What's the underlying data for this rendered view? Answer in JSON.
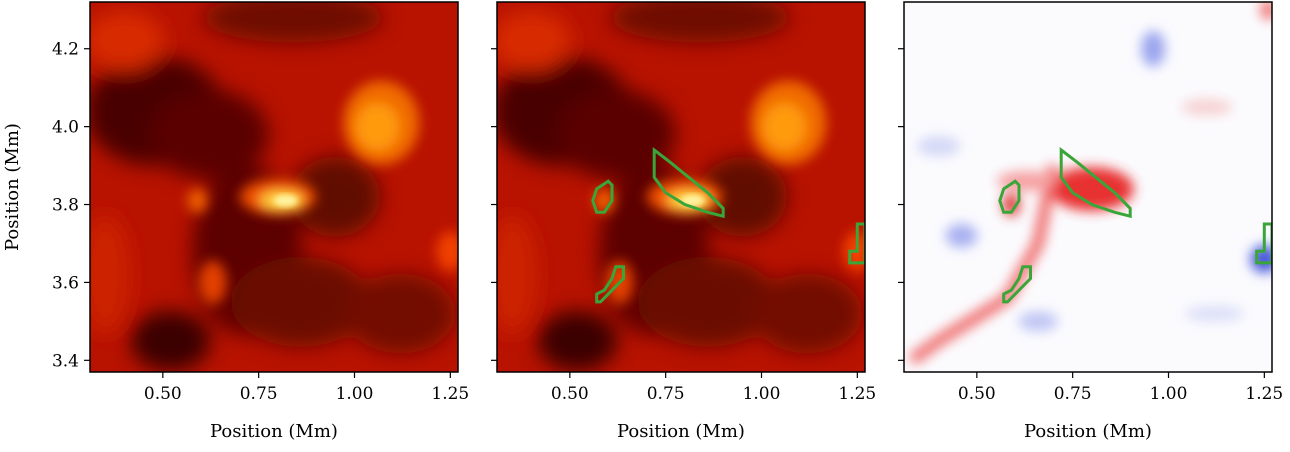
{
  "chart_data": {
    "type": "heatmap",
    "title": "",
    "xlabel": "Position (Mm)",
    "ylabel": "Position (Mm)",
    "xlim": [
      0.31,
      1.27
    ],
    "ylim": [
      3.37,
      4.32
    ],
    "x_ticks": [
      0.5,
      0.75,
      1.0,
      1.25
    ],
    "x_tick_labels": [
      "0.50",
      "0.75",
      "1.00",
      "1.25"
    ],
    "y_ticks": [
      3.4,
      3.6,
      3.8,
      4.0,
      4.2
    ],
    "y_tick_labels": [
      "3.4",
      "3.6",
      "3.8",
      "4.0",
      "4.2"
    ],
    "panels": [
      {
        "name": "intensity",
        "colormap": "hot",
        "show_y_tick_labels": true,
        "show_contours": false,
        "hotspots": [
          {
            "x": 0.81,
            "y": 3.81,
            "level": 1.0
          },
          {
            "x": 1.07,
            "y": 4.0,
            "level": 0.85
          },
          {
            "x": 0.59,
            "y": 3.81,
            "level": 0.7
          },
          {
            "x": 0.62,
            "y": 3.61,
            "level": 0.55
          }
        ]
      },
      {
        "name": "intensity-with-contours",
        "colormap": "hot",
        "show_y_tick_labels": false,
        "show_contours": true
      },
      {
        "name": "signed-field-with-contours",
        "colormap": "bwr",
        "show_y_tick_labels": false,
        "show_contours": true,
        "positive_regions": [
          {
            "x": 0.8,
            "y": 3.83
          },
          {
            "x": 0.58,
            "y": 3.78
          },
          {
            "x": 0.55,
            "y": 3.55
          }
        ],
        "negative_regions": [
          {
            "x": 1.25,
            "y": 3.66
          },
          {
            "x": 0.45,
            "y": 3.72
          },
          {
            "x": 0.96,
            "y": 4.2
          }
        ]
      }
    ],
    "contours": {
      "color": "#3aa63a",
      "regions": [
        {
          "name": "contour-main",
          "points": [
            [
              0.72,
              3.94
            ],
            [
              0.76,
              3.91
            ],
            [
              0.81,
              3.87
            ],
            [
              0.86,
              3.83
            ],
            [
              0.9,
              3.79
            ],
            [
              0.9,
              3.77
            ],
            [
              0.86,
              3.78
            ],
            [
              0.8,
              3.8
            ],
            [
              0.75,
              3.83
            ],
            [
              0.72,
              3.87
            ]
          ]
        },
        {
          "name": "contour-left",
          "points": [
            [
              0.57,
              3.84
            ],
            [
              0.6,
              3.86
            ],
            [
              0.61,
              3.85
            ],
            [
              0.61,
              3.81
            ],
            [
              0.59,
              3.78
            ],
            [
              0.57,
              3.78
            ],
            [
              0.56,
              3.81
            ]
          ]
        },
        {
          "name": "contour-lower",
          "points": [
            [
              0.62,
              3.64
            ],
            [
              0.64,
              3.64
            ],
            [
              0.64,
              3.61
            ],
            [
              0.62,
              3.59
            ],
            [
              0.6,
              3.57
            ],
            [
              0.58,
              3.55
            ],
            [
              0.57,
              3.55
            ],
            [
              0.57,
              3.57
            ],
            [
              0.59,
              3.58
            ],
            [
              0.61,
              3.61
            ]
          ]
        },
        {
          "name": "contour-right",
          "points": [
            [
              1.27,
              3.75
            ],
            [
              1.27,
              3.65
            ],
            [
              1.23,
              3.65
            ],
            [
              1.23,
              3.68
            ],
            [
              1.25,
              3.68
            ],
            [
              1.25,
              3.75
            ]
          ]
        }
      ]
    }
  },
  "colors": {
    "contour": "#3aa63a",
    "frame": "#000000"
  }
}
